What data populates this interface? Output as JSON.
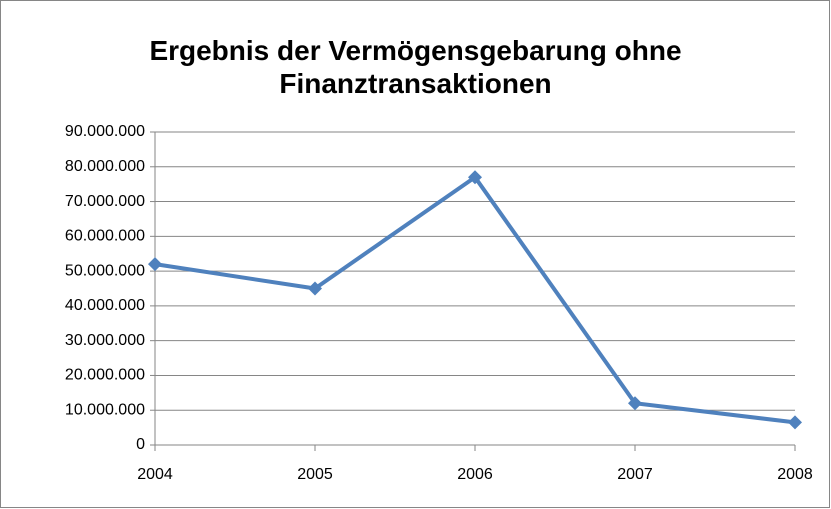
{
  "chart_data": {
    "type": "line",
    "title": "Ergebnis der Vermögensgebarung ohne Finanztransaktionen",
    "categories": [
      "2004",
      "2005",
      "2006",
      "2007",
      "2008"
    ],
    "series": [
      {
        "name": "Ergebnis",
        "color": "#4f81bd",
        "values": [
          52000000,
          45000000,
          77000000,
          12000000,
          6500000
        ]
      }
    ],
    "ylim": [
      0,
      90000000
    ],
    "yticks": [
      0,
      {
        "value": 10000000,
        "label": "10.000.000"
      },
      {
        "value": 20000000,
        "label": "20.000.000"
      },
      {
        "value": 30000000,
        "label": "30.000.000"
      },
      {
        "value": 40000000,
        "label": "40.000.000"
      },
      {
        "value": 50000000,
        "label": "50.000.000"
      },
      {
        "value": 60000000,
        "label": "60.000.000"
      },
      {
        "value": 70000000,
        "label": "70.000.000"
      },
      {
        "value": 80000000,
        "label": "80.000.000"
      },
      {
        "value": 90000000,
        "label": "90.000.000"
      }
    ],
    "grid": true,
    "legend": false
  }
}
